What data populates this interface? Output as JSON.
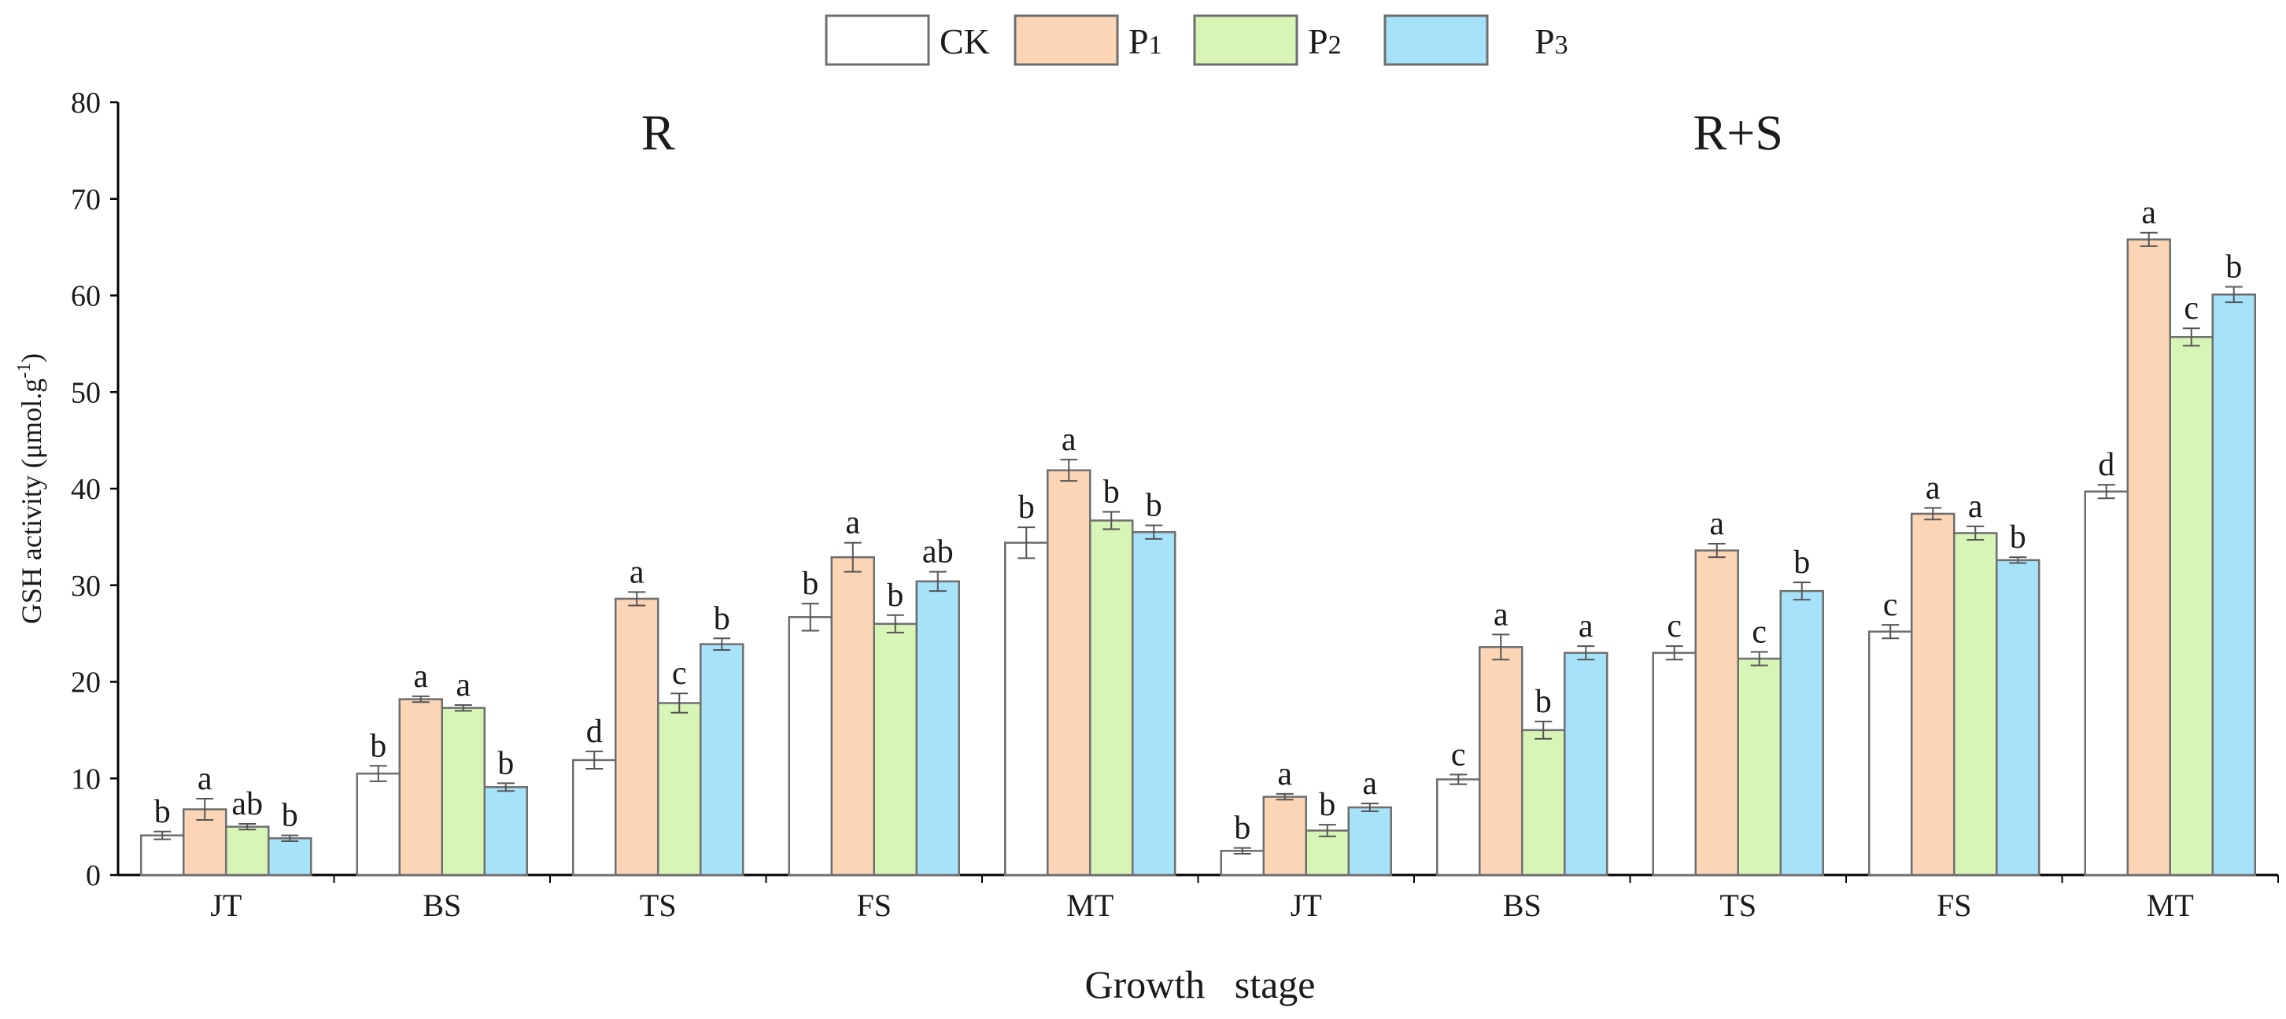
{
  "chart_data": {
    "type": "bar",
    "ylabel": "GSH activity (μmol.g-1)",
    "ylabel_main": "GSH activity (μmol.g",
    "ylabel_sup": "-1",
    "ylabel_close": ")",
    "xlabel": "Growth   stage",
    "ylim": [
      0,
      80
    ],
    "yticks": [
      0,
      10,
      20,
      30,
      40,
      50,
      60,
      70,
      80
    ],
    "grid": false,
    "legend_position": "top-center",
    "series": [
      {
        "name": "CK",
        "color": "#ffffff"
      },
      {
        "name": "P1",
        "label_main": "P",
        "label_sub": "1",
        "color": "#fbd5b5"
      },
      {
        "name": "P2",
        "label_main": "P",
        "label_sub": "2",
        "color": "#d8f5b8"
      },
      {
        "name": "P3",
        "label_main": "P",
        "label_sub": "3",
        "color": "#a6e3fb"
      }
    ],
    "groups": [
      {
        "name": "R",
        "categories": [
          "JT",
          "BS",
          "TS",
          "FS",
          "MT"
        ],
        "values": [
          [
            4.1,
            10.5,
            11.9,
            26.7,
            34.4
          ],
          [
            6.8,
            18.2,
            28.6,
            32.9,
            41.9
          ],
          [
            5.0,
            17.3,
            17.8,
            26.0,
            36.7
          ],
          [
            3.8,
            9.1,
            23.9,
            30.4,
            35.5
          ]
        ],
        "errors": [
          [
            0.4,
            0.8,
            0.9,
            1.4,
            1.6
          ],
          [
            1.1,
            0.3,
            0.7,
            1.5,
            1.1
          ],
          [
            0.3,
            0.3,
            1.0,
            0.9,
            0.9
          ],
          [
            0.3,
            0.4,
            0.6,
            1.0,
            0.7
          ]
        ],
        "letters": [
          [
            "b",
            "b",
            "d",
            "b",
            "b"
          ],
          [
            "a",
            "a",
            "a",
            "a",
            "a"
          ],
          [
            "ab",
            "a",
            "c",
            "b",
            "b"
          ],
          [
            "b",
            "b",
            "b",
            "ab",
            "b"
          ]
        ]
      },
      {
        "name": "R+S",
        "categories": [
          "JT",
          "BS",
          "TS",
          "FS",
          "MT"
        ],
        "values": [
          [
            2.5,
            9.9,
            23.0,
            25.2,
            39.7
          ],
          [
            8.1,
            23.6,
            33.6,
            37.4,
            65.8
          ],
          [
            4.6,
            15.0,
            22.4,
            35.4,
            55.7
          ],
          [
            7.0,
            23.0,
            29.4,
            32.6,
            60.1
          ]
        ],
        "errors": [
          [
            0.3,
            0.5,
            0.7,
            0.7,
            0.7
          ],
          [
            0.3,
            1.3,
            0.7,
            0.6,
            0.7
          ],
          [
            0.6,
            0.9,
            0.7,
            0.7,
            0.9
          ],
          [
            0.4,
            0.7,
            0.9,
            0.3,
            0.8
          ]
        ],
        "letters": [
          [
            "b",
            "c",
            "c",
            "c",
            "d"
          ],
          [
            "a",
            "a",
            "a",
            "a",
            "a"
          ],
          [
            "b",
            "b",
            "c",
            "a",
            "c"
          ],
          [
            "a",
            "a",
            "b",
            "b",
            "b"
          ]
        ]
      }
    ]
  }
}
